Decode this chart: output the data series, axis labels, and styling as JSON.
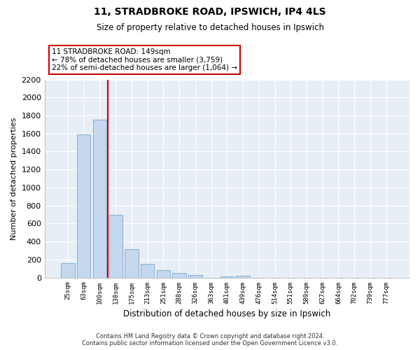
{
  "title": "11, STRADBROKE ROAD, IPSWICH, IP4 4LS",
  "subtitle": "Size of property relative to detached houses in Ipswich",
  "xlabel": "Distribution of detached houses by size in Ipswich",
  "ylabel": "Number of detached properties",
  "bin_labels": [
    "25sqm",
    "63sqm",
    "100sqm",
    "138sqm",
    "175sqm",
    "213sqm",
    "251sqm",
    "288sqm",
    "326sqm",
    "363sqm",
    "401sqm",
    "439sqm",
    "476sqm",
    "514sqm",
    "551sqm",
    "589sqm",
    "627sqm",
    "664sqm",
    "702sqm",
    "739sqm",
    "777sqm"
  ],
  "bar_heights": [
    160,
    1590,
    1750,
    700,
    315,
    155,
    85,
    50,
    25,
    0,
    15,
    20,
    0,
    0,
    0,
    0,
    0,
    0,
    0,
    0,
    0
  ],
  "bar_color": "#c5d8ee",
  "bar_edge_color": "#8ab4d8",
  "highlight_line_color": "#cc0000",
  "annotation_title": "11 STRADBROKE ROAD: 149sqm",
  "annotation_line1": "← 78% of detached houses are smaller (3,759)",
  "annotation_line2": "22% of semi-detached houses are larger (1,064) →",
  "annotation_box_color": "#ffffff",
  "annotation_box_edge": "#cc0000",
  "ylim": [
    0,
    2200
  ],
  "yticks": [
    0,
    200,
    400,
    600,
    800,
    1000,
    1200,
    1400,
    1600,
    1800,
    2000,
    2200
  ],
  "footer_line1": "Contains HM Land Registry data © Crown copyright and database right 2024.",
  "footer_line2": "Contains public sector information licensed under the Open Government Licence v3.0.",
  "background_color": "#ffffff",
  "plot_bg_color": "#e8eef5",
  "grid_color": "#ffffff"
}
